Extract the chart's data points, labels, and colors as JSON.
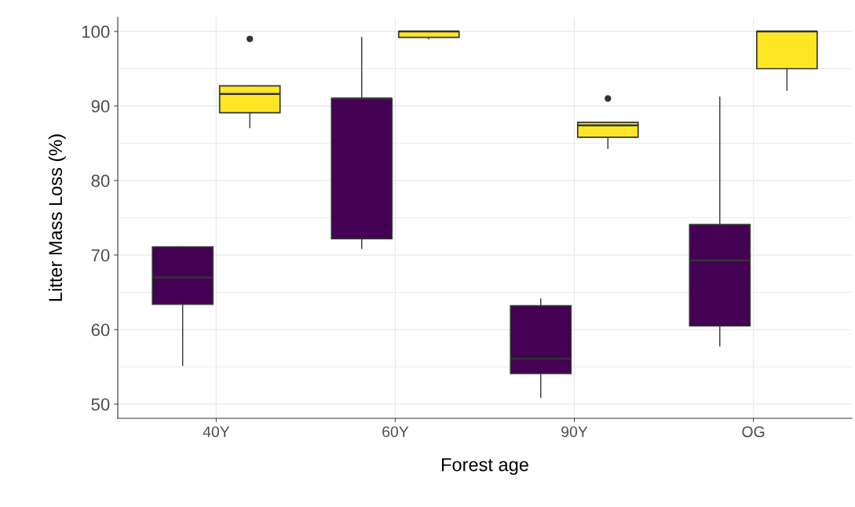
{
  "chart_data": {
    "type": "box",
    "xlabel": "Forest age",
    "ylabel": "Litter Mass Loss (%)",
    "categories": [
      "40Y",
      "60Y",
      "90Y",
      "OG"
    ],
    "series": [
      {
        "color": "#440154",
        "boxes": [
          {
            "low": 55.2,
            "q1": 63.4,
            "median": 67.0,
            "q3": 71.1,
            "high": 71.1
          },
          {
            "low": 70.9,
            "q1": 72.2,
            "median": 91.0,
            "q3": 91.0,
            "high": 99.2
          },
          {
            "low": 50.9,
            "q1": 54.1,
            "median": 56.1,
            "q3": 63.2,
            "high": 64.1
          },
          {
            "low": 57.8,
            "q1": 60.5,
            "median": 69.3,
            "q3": 74.1,
            "high": 91.2
          }
        ]
      },
      {
        "color": "#fde725",
        "boxes": [
          {
            "low": 87.1,
            "q1": 89.1,
            "median": 91.6,
            "q3": 92.7,
            "high": 92.7,
            "outliers": [
              99.0
            ]
          },
          {
            "low": 99.0,
            "q1": 99.2,
            "median": 100.0,
            "q3": 100.0,
            "high": 100.0
          },
          {
            "low": 84.3,
            "q1": 85.8,
            "median": 87.4,
            "q3": 87.8,
            "high": 87.8,
            "outliers": [
              91.0
            ]
          },
          {
            "low": 92.1,
            "q1": 95.0,
            "median": 100.0,
            "q3": 100.0,
            "high": 100.0
          }
        ]
      }
    ],
    "ylim": [
      48.1,
      101.9
    ],
    "yticks": [
      50,
      60,
      70,
      80,
      90,
      100
    ],
    "grid": true
  }
}
